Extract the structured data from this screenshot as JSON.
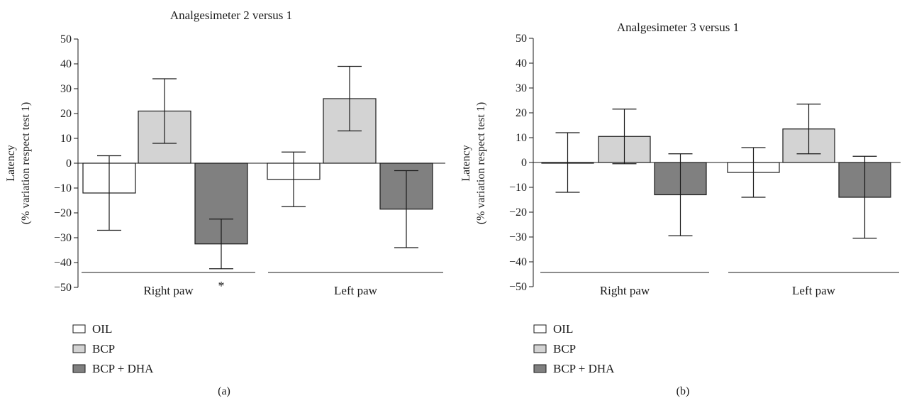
{
  "chart_data": [
    {
      "type": "bar",
      "panel_label": "(a)",
      "title": "Analgesimeter 2 versus 1",
      "ylabel_line1": "Latency",
      "ylabel_line2": "(% variation respect test 1)",
      "xlabel": "",
      "ylim": [
        -50,
        50
      ],
      "yticks": [
        50,
        40,
        30,
        20,
        10,
        0,
        -10,
        -20,
        -30,
        -40,
        -50
      ],
      "grid": false,
      "legend_position": "bottom-left",
      "categories": [
        "Right paw",
        "Left paw"
      ],
      "series": [
        {
          "name": "OIL",
          "color": "#ffffff",
          "values": [
            -12,
            -6.5
          ],
          "error": [
            15,
            11
          ]
        },
        {
          "name": "BCP",
          "color": "#d3d3d3",
          "values": [
            21,
            26
          ],
          "error": [
            13,
            13
          ]
        },
        {
          "name": "BCP + DHA",
          "color": "#808080",
          "values": [
            -32.5,
            -18.5
          ],
          "error": [
            10,
            15.5
          ]
        }
      ],
      "annotations": [
        {
          "text": "*",
          "category": "Right paw"
        }
      ]
    },
    {
      "type": "bar",
      "panel_label": "(b)",
      "title": "Analgesimeter 3 versus 1",
      "ylabel_line1": "Latency",
      "ylabel_line2": "(% variation respect test 1)",
      "xlabel": "",
      "ylim": [
        -50,
        50
      ],
      "yticks": [
        50,
        40,
        30,
        20,
        10,
        0,
        -10,
        -20,
        -30,
        -40,
        -50
      ],
      "grid": false,
      "legend_position": "bottom-left",
      "categories": [
        "Right paw",
        "Left paw"
      ],
      "series": [
        {
          "name": "OIL",
          "color": "#ffffff",
          "values": [
            0,
            -4
          ],
          "error": [
            12,
            10
          ]
        },
        {
          "name": "BCP",
          "color": "#d3d3d3",
          "values": [
            10.5,
            13.5
          ],
          "error": [
            11,
            10
          ]
        },
        {
          "name": "BCP + DHA",
          "color": "#808080",
          "values": [
            -13,
            -14
          ],
          "error": [
            16.5,
            16.5
          ]
        }
      ],
      "annotations": []
    }
  ]
}
